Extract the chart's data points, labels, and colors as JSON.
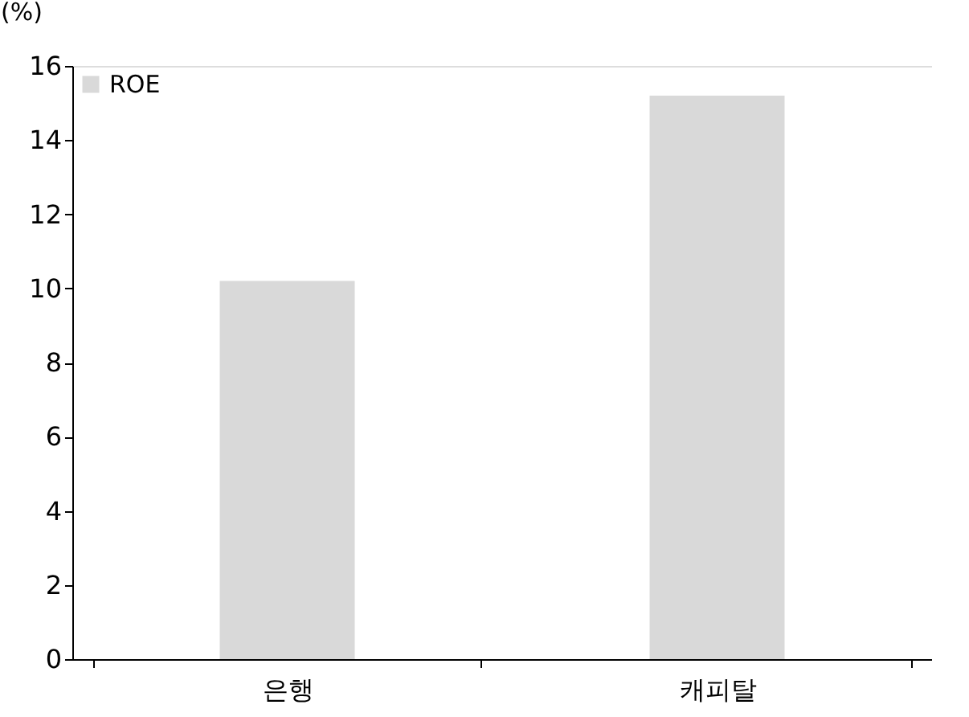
{
  "chart_data": {
    "type": "bar",
    "ylabel": "(%)",
    "categories": [
      "은행",
      "캐피탈"
    ],
    "series": [
      {
        "name": "ROE",
        "color": "#d9d9d9",
        "values": [
          10.2,
          15.2
        ]
      }
    ],
    "ylim": [
      0,
      16
    ],
    "yticks": [
      0,
      2,
      4,
      6,
      8,
      10,
      12,
      14,
      16
    ],
    "grid": false,
    "legend": "top left"
  }
}
